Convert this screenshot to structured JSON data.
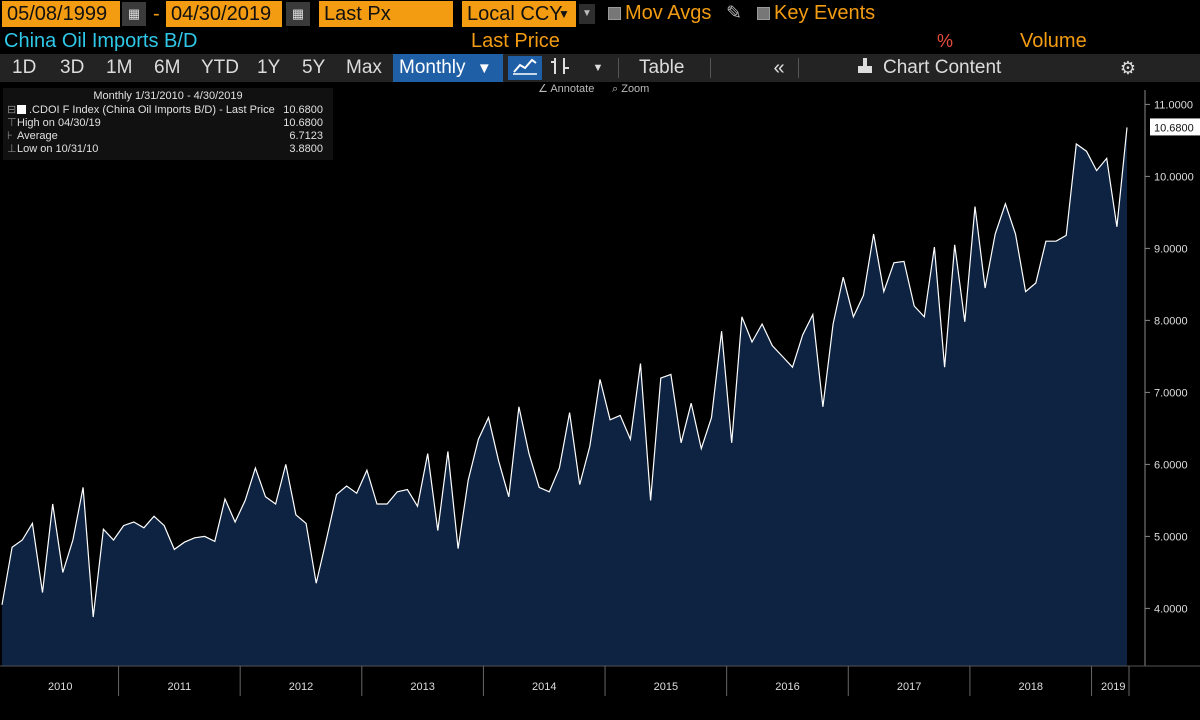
{
  "toolbar": {
    "start_date": "05/08/1999",
    "end_date": "04/30/2019",
    "dash": "-",
    "field": "Last Px",
    "currency": "Local CCY",
    "mov_avgs": "Mov Avgs",
    "key_events": "Key Events"
  },
  "titles": {
    "security": "China Oil Imports B/D",
    "last_price": "Last Price",
    "percent": "%",
    "volume": "Volume"
  },
  "periods": [
    "1D",
    "3D",
    "1M",
    "6M",
    "YTD",
    "1Y",
    "5Y",
    "Max"
  ],
  "period_selected": "Monthly",
  "table_label": "Table",
  "chart_content_label": "Chart Content",
  "annotate_label": "Annotate",
  "zoom_label": "Zoom",
  "legend": {
    "header": "Monthly 1/31/2010 - 4/30/2019",
    "series": ".CDOI F Index (China Oil Imports B/D) - Last Price",
    "series_value": "10.6800",
    "high_label": "High on 04/30/19",
    "high_value": "10.6800",
    "avg_label": "Average",
    "avg_value": "6.7123",
    "low_label": "Low on 10/31/10",
    "low_value": "3.8800"
  },
  "colors": {
    "orange": "#f39c12",
    "cyan": "#2fc7e8",
    "fill": "#0d2341",
    "line": "#ffffff",
    "selected_tab": "#1f5fa6"
  },
  "chart_data": {
    "type": "area",
    "title": "China Oil Imports B/D",
    "start": "2010-01",
    "frequency": "monthly",
    "values": [
      4.05,
      4.85,
      4.95,
      5.18,
      4.22,
      5.45,
      4.5,
      4.95,
      5.68,
      3.88,
      5.1,
      4.95,
      5.15,
      5.2,
      5.12,
      5.28,
      5.15,
      4.82,
      4.92,
      4.98,
      5.0,
      4.93,
      5.52,
      5.2,
      5.5,
      5.95,
      5.55,
      5.45,
      6.0,
      5.3,
      5.18,
      4.35,
      4.95,
      5.58,
      5.7,
      5.6,
      5.92,
      5.45,
      5.45,
      5.62,
      5.65,
      5.42,
      6.15,
      5.08,
      6.18,
      4.83,
      5.78,
      6.35,
      6.65,
      6.05,
      5.55,
      6.8,
      6.15,
      5.68,
      5.62,
      5.95,
      6.72,
      5.72,
      6.25,
      7.18,
      6.62,
      6.68,
      6.35,
      7.4,
      5.5,
      7.2,
      7.25,
      6.3,
      6.85,
      6.22,
      6.65,
      7.85,
      6.3,
      8.05,
      7.7,
      7.95,
      7.65,
      7.5,
      7.35,
      7.8,
      8.08,
      6.8,
      7.95,
      8.6,
      8.05,
      8.35,
      9.2,
      8.4,
      8.8,
      8.82,
      8.2,
      8.05,
      9.02,
      7.35,
      9.05,
      7.98,
      9.58,
      8.45,
      9.2,
      9.62,
      9.2,
      8.4,
      8.52,
      9.1,
      9.1,
      9.18,
      10.45,
      10.35,
      10.08,
      10.25,
      9.3,
      10.68
    ],
    "last_value_label": "10.6800",
    "y_ticks": [
      "4.0000",
      "5.0000",
      "6.0000",
      "7.0000",
      "8.0000",
      "9.0000",
      "10.0000",
      "11.0000"
    ],
    "ylim": [
      3.2,
      11.2
    ],
    "x_labels": [
      "2010",
      "2011",
      "2012",
      "2013",
      "2014",
      "2015",
      "2016",
      "2017",
      "2018",
      "2019"
    ],
    "grid": false,
    "legend_position": "top-left"
  }
}
